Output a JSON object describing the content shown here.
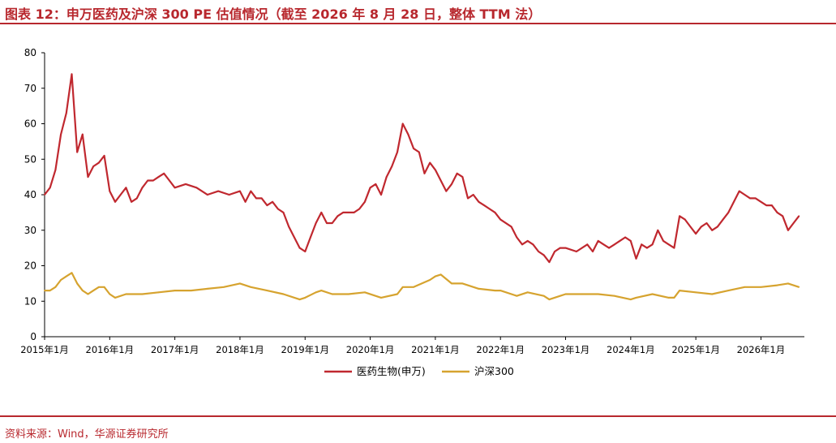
{
  "header": {
    "title": "图表 12：申万医药及沪深 300 PE 估值情况（截至 2026 年 8 月 28 日，整体 TTM 法）"
  },
  "footer": {
    "source": "资料来源：Wind，华源证券研究所"
  },
  "colors": {
    "accent": "#b8282e",
    "pharma": "#c0282f",
    "hs300": "#d6a32f"
  },
  "chart_data": {
    "type": "line",
    "title": "",
    "xlabel": "",
    "ylabel": "",
    "ylim": [
      0,
      80
    ],
    "yticks": [
      "0",
      "10",
      "20",
      "30",
      "40",
      "50",
      "60",
      "70",
      "80"
    ],
    "xlim": [
      "2015-01",
      "2026-09"
    ],
    "xticks": [
      "2015年1月",
      "2016年1月",
      "2017年1月",
      "2018年1月",
      "2019年1月",
      "2020年1月",
      "2021年1月",
      "2022年1月",
      "2023年1月",
      "2024年1月",
      "2025年1月",
      "2026年1月"
    ],
    "grid": false,
    "legend": "bottom",
    "series": [
      {
        "name": "医药生物(申万)",
        "color": "#c0282f",
        "points": [
          [
            "2015-01",
            40
          ],
          [
            "2015-02",
            42
          ],
          [
            "2015-03",
            47
          ],
          [
            "2015-04",
            57
          ],
          [
            "2015-05",
            63
          ],
          [
            "2015-06",
            74
          ],
          [
            "2015-07",
            52
          ],
          [
            "2015-08",
            57
          ],
          [
            "2015-09",
            45
          ],
          [
            "2015-10",
            48
          ],
          [
            "2015-11",
            49
          ],
          [
            "2015-12",
            51
          ],
          [
            "2016-01",
            41
          ],
          [
            "2016-02",
            38
          ],
          [
            "2016-03",
            40
          ],
          [
            "2016-04",
            42
          ],
          [
            "2016-05",
            38
          ],
          [
            "2016-06",
            39
          ],
          [
            "2016-07",
            42
          ],
          [
            "2016-08",
            44
          ],
          [
            "2016-09",
            44
          ],
          [
            "2016-10",
            45
          ],
          [
            "2016-11",
            46
          ],
          [
            "2016-12",
            44
          ],
          [
            "2017-01",
            42
          ],
          [
            "2017-03",
            43
          ],
          [
            "2017-05",
            42
          ],
          [
            "2017-07",
            40
          ],
          [
            "2017-09",
            41
          ],
          [
            "2017-11",
            40
          ],
          [
            "2018-01",
            41
          ],
          [
            "2018-02",
            38
          ],
          [
            "2018-03",
            41
          ],
          [
            "2018-04",
            39
          ],
          [
            "2018-05",
            39
          ],
          [
            "2018-06",
            37
          ],
          [
            "2018-07",
            38
          ],
          [
            "2018-08",
            36
          ],
          [
            "2018-09",
            35
          ],
          [
            "2018-10",
            31
          ],
          [
            "2018-11",
            28
          ],
          [
            "2018-12",
            25
          ],
          [
            "2019-01",
            24
          ],
          [
            "2019-02",
            28
          ],
          [
            "2019-03",
            32
          ],
          [
            "2019-04",
            35
          ],
          [
            "2019-05",
            32
          ],
          [
            "2019-06",
            32
          ],
          [
            "2019-07",
            34
          ],
          [
            "2019-08",
            35
          ],
          [
            "2019-09",
            35
          ],
          [
            "2019-10",
            35
          ],
          [
            "2019-11",
            36
          ],
          [
            "2019-12",
            38
          ],
          [
            "2020-01",
            42
          ],
          [
            "2020-02",
            43
          ],
          [
            "2020-03",
            40
          ],
          [
            "2020-04",
            45
          ],
          [
            "2020-05",
            48
          ],
          [
            "2020-06",
            52
          ],
          [
            "2020-07",
            60
          ],
          [
            "2020-08",
            57
          ],
          [
            "2020-09",
            53
          ],
          [
            "2020-10",
            52
          ],
          [
            "2020-11",
            46
          ],
          [
            "2020-12",
            49
          ],
          [
            "2021-01",
            47
          ],
          [
            "2021-02",
            44
          ],
          [
            "2021-03",
            41
          ],
          [
            "2021-04",
            43
          ],
          [
            "2021-05",
            46
          ],
          [
            "2021-06",
            45
          ],
          [
            "2021-07",
            39
          ],
          [
            "2021-08",
            40
          ],
          [
            "2021-09",
            38
          ],
          [
            "2021-10",
            37
          ],
          [
            "2021-11",
            36
          ],
          [
            "2021-12",
            35
          ],
          [
            "2022-01",
            33
          ],
          [
            "2022-03",
            31
          ],
          [
            "2022-04",
            28
          ],
          [
            "2022-05",
            26
          ],
          [
            "2022-06",
            27
          ],
          [
            "2022-07",
            26
          ],
          [
            "2022-08",
            24
          ],
          [
            "2022-09",
            23
          ],
          [
            "2022-10",
            21
          ],
          [
            "2022-11",
            24
          ],
          [
            "2022-12",
            25
          ],
          [
            "2023-01",
            25
          ],
          [
            "2023-03",
            24
          ],
          [
            "2023-05",
            26
          ],
          [
            "2023-06",
            24
          ],
          [
            "2023-07",
            27
          ],
          [
            "2023-08",
            26
          ],
          [
            "2023-09",
            25
          ],
          [
            "2023-10",
            26
          ],
          [
            "2023-11",
            27
          ],
          [
            "2023-12",
            28
          ],
          [
            "2024-01",
            27
          ],
          [
            "2024-02",
            22
          ],
          [
            "2024-03",
            26
          ],
          [
            "2024-04",
            25
          ],
          [
            "2024-05",
            26
          ],
          [
            "2024-06",
            30
          ],
          [
            "2024-07",
            27
          ],
          [
            "2024-08",
            26
          ],
          [
            "2024-09",
            25
          ],
          [
            "2024-10",
            34
          ],
          [
            "2024-11",
            33
          ],
          [
            "2024-12",
            31
          ],
          [
            "2025-01",
            29
          ],
          [
            "2025-02",
            31
          ],
          [
            "2025-03",
            32
          ],
          [
            "2025-04",
            30
          ],
          [
            "2025-05",
            31
          ],
          [
            "2025-06",
            33
          ],
          [
            "2025-07",
            35
          ],
          [
            "2025-08",
            38
          ],
          [
            "2025-09",
            41
          ],
          [
            "2025-10",
            40
          ],
          [
            "2025-11",
            39
          ],
          [
            "2025-12",
            39
          ],
          [
            "2026-01",
            38
          ],
          [
            "2026-02",
            37
          ],
          [
            "2026-03",
            37
          ],
          [
            "2026-04",
            35
          ],
          [
            "2026-05",
            34
          ],
          [
            "2026-06",
            30
          ],
          [
            "2026-07",
            32
          ],
          [
            "2026-08",
            34
          ]
        ]
      },
      {
        "name": "沪深300",
        "color": "#d6a32f",
        "points": [
          [
            "2015-01",
            13
          ],
          [
            "2015-02",
            13
          ],
          [
            "2015-03",
            14
          ],
          [
            "2015-04",
            16
          ],
          [
            "2015-05",
            17
          ],
          [
            "2015-06",
            18
          ],
          [
            "2015-07",
            15
          ],
          [
            "2015-08",
            13
          ],
          [
            "2015-09",
            12
          ],
          [
            "2015-10",
            13
          ],
          [
            "2015-11",
            14
          ],
          [
            "2015-12",
            14
          ],
          [
            "2016-01",
            12
          ],
          [
            "2016-02",
            11
          ],
          [
            "2016-04",
            12
          ],
          [
            "2016-07",
            12
          ],
          [
            "2016-10",
            12.5
          ],
          [
            "2017-01",
            13
          ],
          [
            "2017-04",
            13
          ],
          [
            "2017-07",
            13.5
          ],
          [
            "2017-10",
            14
          ],
          [
            "2018-01",
            15
          ],
          [
            "2018-03",
            14
          ],
          [
            "2018-06",
            13
          ],
          [
            "2018-09",
            12
          ],
          [
            "2018-12",
            10.5
          ],
          [
            "2019-01",
            11
          ],
          [
            "2019-03",
            12.5
          ],
          [
            "2019-04",
            13
          ],
          [
            "2019-06",
            12
          ],
          [
            "2019-09",
            12
          ],
          [
            "2019-12",
            12.5
          ],
          [
            "2020-03",
            11
          ],
          [
            "2020-06",
            12
          ],
          [
            "2020-07",
            14
          ],
          [
            "2020-09",
            14
          ],
          [
            "2020-12",
            16
          ],
          [
            "2021-01",
            17
          ],
          [
            "2021-02",
            17.5
          ],
          [
            "2021-04",
            15
          ],
          [
            "2021-06",
            15
          ],
          [
            "2021-09",
            13.5
          ],
          [
            "2021-12",
            13
          ],
          [
            "2022-01",
            13
          ],
          [
            "2022-04",
            11.5
          ],
          [
            "2022-06",
            12.5
          ],
          [
            "2022-09",
            11.5
          ],
          [
            "2022-10",
            10.5
          ],
          [
            "2022-12",
            11.5
          ],
          [
            "2023-01",
            12
          ],
          [
            "2023-04",
            12
          ],
          [
            "2023-07",
            12
          ],
          [
            "2023-10",
            11.5
          ],
          [
            "2024-01",
            10.5
          ],
          [
            "2024-02",
            11
          ],
          [
            "2024-05",
            12
          ],
          [
            "2024-08",
            11
          ],
          [
            "2024-09",
            11
          ],
          [
            "2024-10",
            13
          ],
          [
            "2025-01",
            12.5
          ],
          [
            "2025-04",
            12
          ],
          [
            "2025-07",
            13
          ],
          [
            "2025-10",
            14
          ],
          [
            "2026-01",
            14
          ],
          [
            "2026-04",
            14.5
          ],
          [
            "2026-06",
            15
          ],
          [
            "2026-08",
            14
          ]
        ]
      }
    ]
  }
}
